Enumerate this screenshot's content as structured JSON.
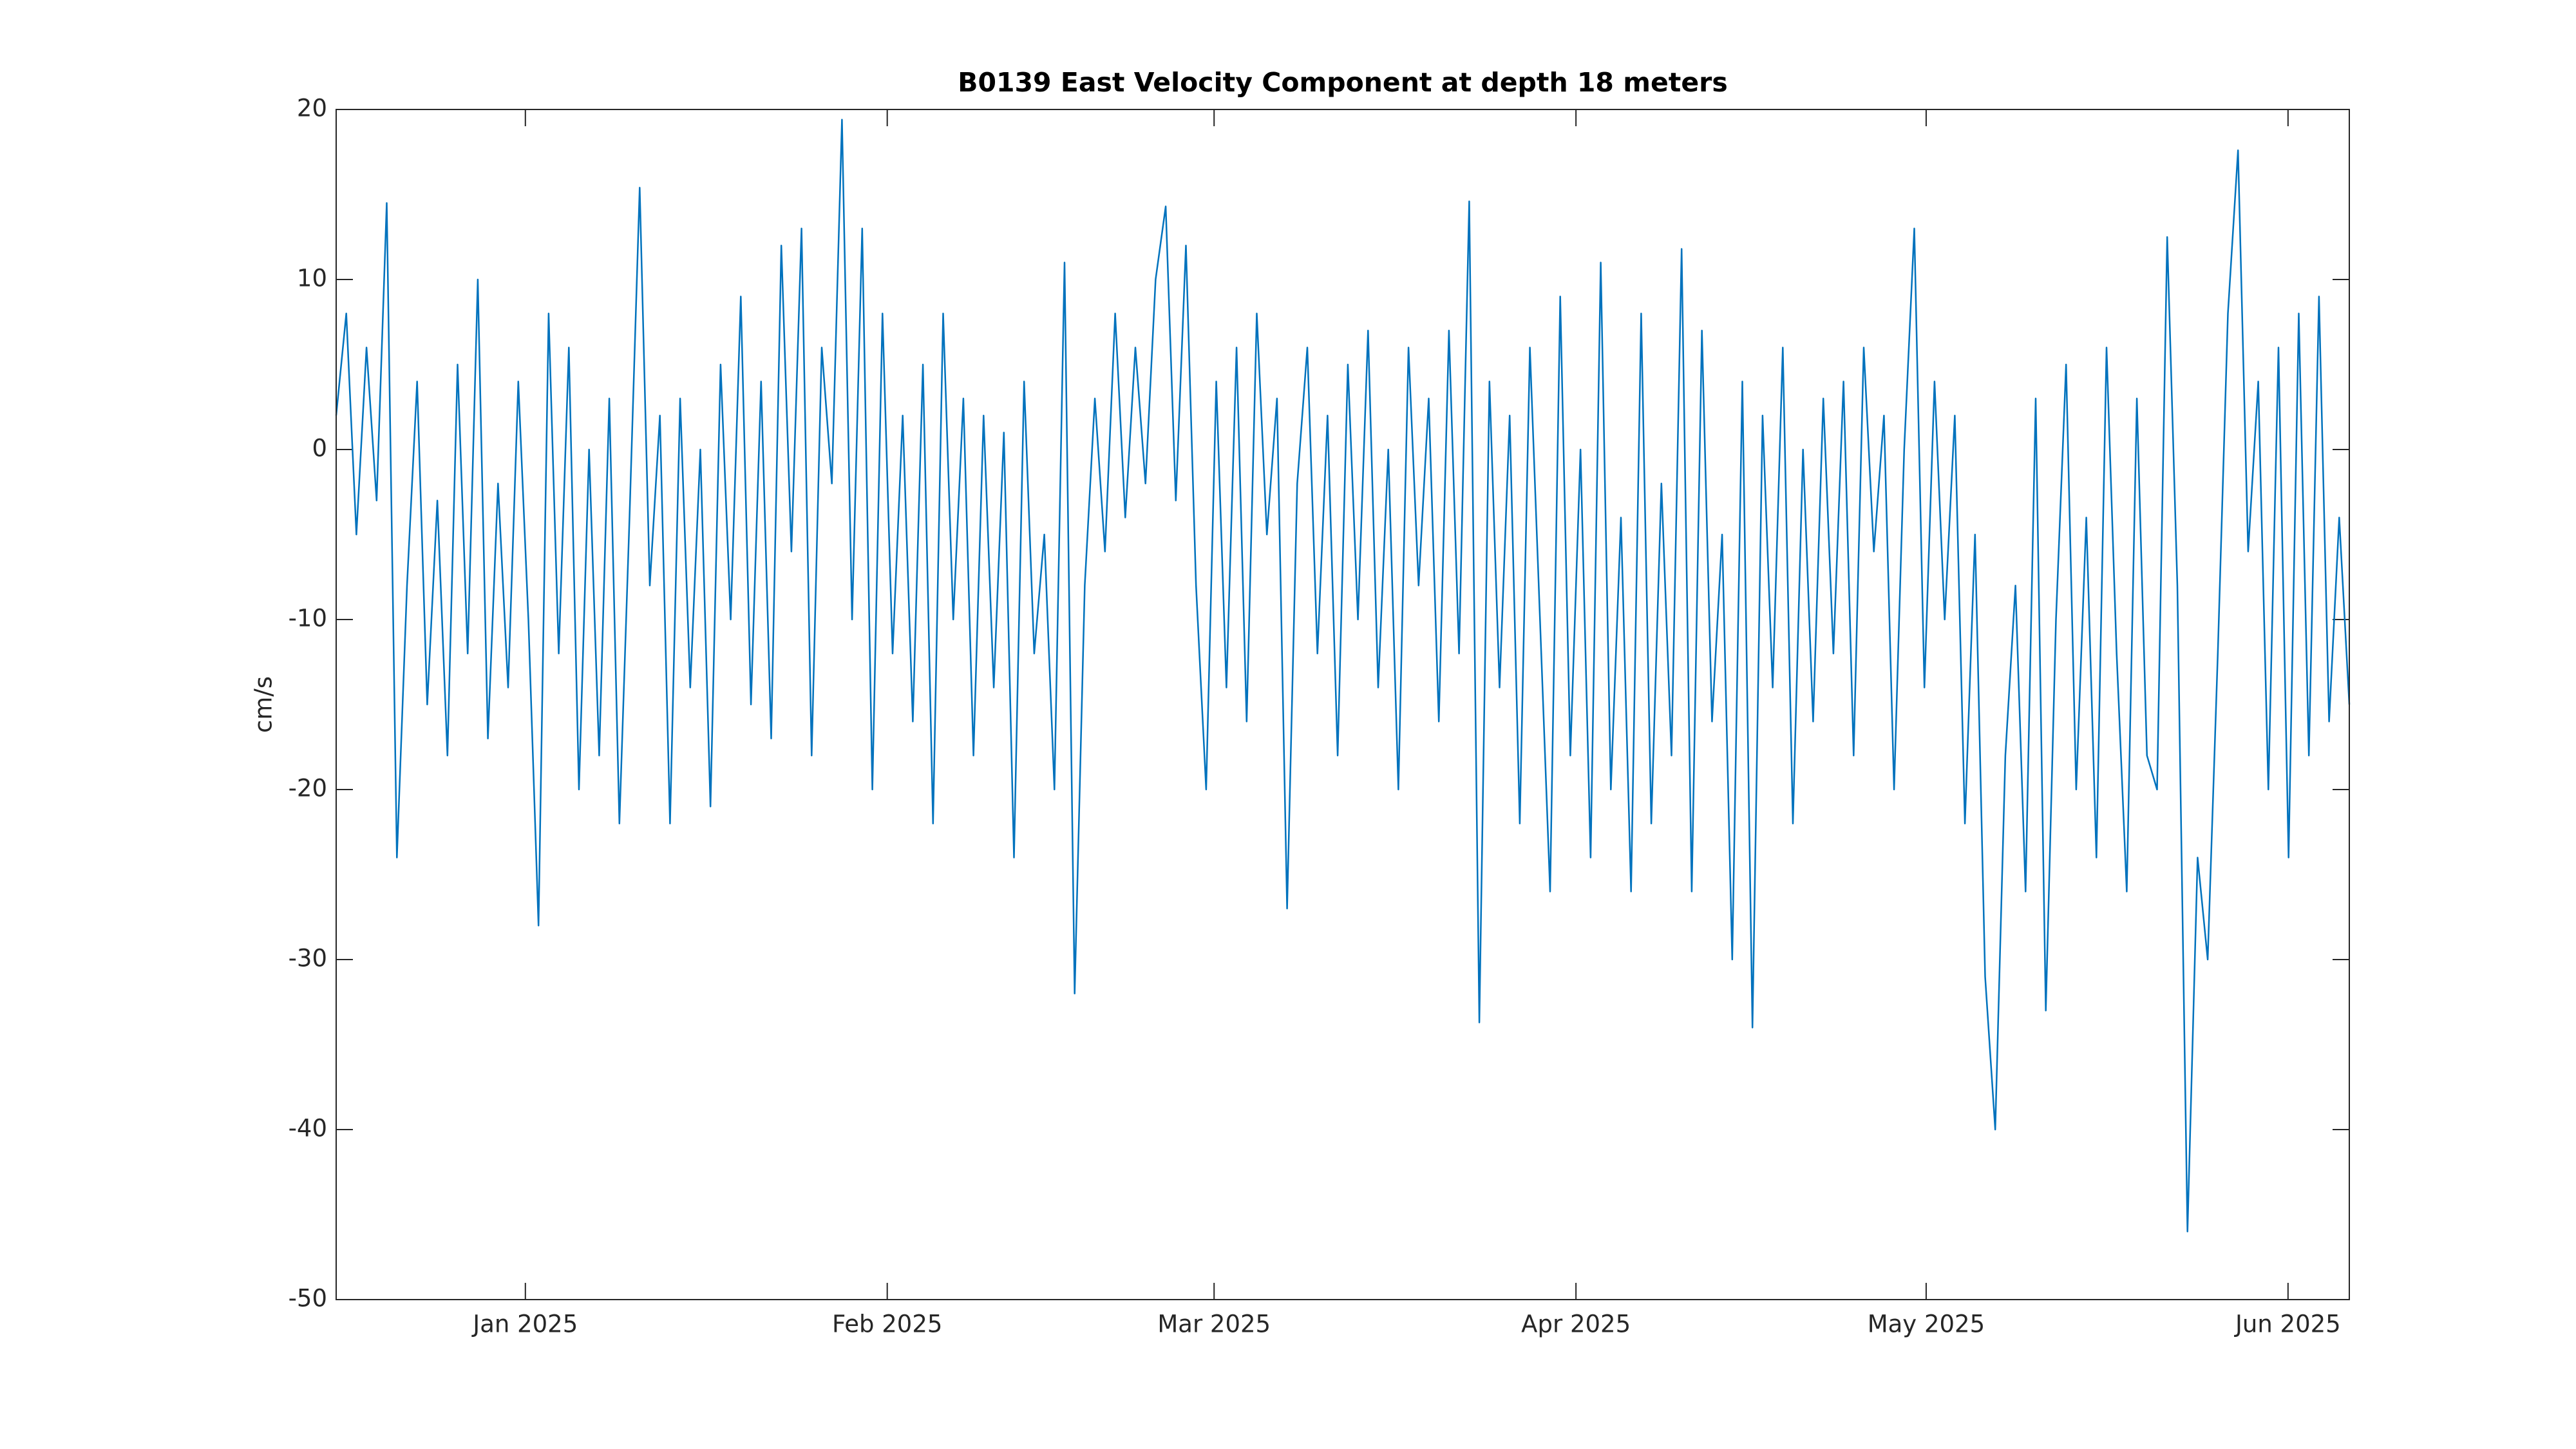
{
  "chart_data": {
    "type": "line",
    "title": "B0139 East Velocity Component at depth 18 meters",
    "ylabel": "cm/s",
    "color": "#0072bd",
    "xlim": [
      "2024-12-15T19:00",
      "2025-06-06T06:00"
    ],
    "xticks": [
      {
        "value": "2025-01-01T00:00",
        "label": "Jan 2025"
      },
      {
        "value": "2025-02-01T00:00",
        "label": "Feb 2025"
      },
      {
        "value": "2025-03-01T00:00",
        "label": "Mar 2025"
      },
      {
        "value": "2025-04-01T00:00",
        "label": "Apr 2025"
      },
      {
        "value": "2025-05-01T00:00",
        "label": "May 2025"
      },
      {
        "value": "2025-06-01T00:00",
        "label": "Jun 2025"
      }
    ],
    "ylim": [
      -50,
      20
    ],
    "yticks": [
      -50,
      -40,
      -30,
      -20,
      -10,
      0,
      10,
      20
    ],
    "grid": false,
    "values": [
      2,
      8,
      -5,
      6,
      -3,
      14.5,
      -24,
      -8,
      4,
      -15,
      -3,
      -18,
      5,
      -12,
      10,
      -17,
      -2,
      -14,
      4,
      -10,
      -28,
      8,
      -12,
      6,
      -20,
      0,
      -18,
      3,
      -22,
      -4,
      15.4,
      -8,
      2,
      -22,
      3,
      -14,
      0,
      -21,
      5,
      -10,
      9,
      -15,
      4,
      -17,
      12,
      -6,
      13,
      -18,
      6,
      -2,
      19.4,
      -10,
      13,
      -20,
      8,
      -12,
      2,
      -16,
      5,
      -22,
      8,
      -10,
      3,
      -18,
      2,
      -14,
      1,
      -24,
      4,
      -12,
      -5,
      -20,
      11,
      -32,
      -8,
      3,
      -6,
      8,
      -4,
      6,
      -2,
      10,
      14.3,
      -3,
      12,
      -8,
      -20,
      4,
      -14,
      6,
      -16,
      8,
      -5,
      3,
      -27,
      -2,
      6,
      -12,
      2,
      -18,
      5,
      -10,
      7,
      -14,
      0,
      -20,
      6,
      -8,
      3,
      -16,
      7,
      -12,
      14.6,
      -33.7,
      4,
      -14,
      2,
      -22,
      6,
      -10,
      -26,
      9,
      -18,
      0,
      -24,
      11,
      -20,
      -4,
      -26,
      8,
      -22,
      -2,
      -18,
      11.8,
      -26,
      7,
      -16,
      -5,
      -30,
      4,
      -34,
      2,
      -14,
      6,
      -22,
      0,
      -16,
      3,
      -12,
      4,
      -18,
      6,
      -6,
      2,
      -20,
      0,
      13,
      -14,
      4,
      -10,
      2,
      -22,
      -5,
      -31,
      -40,
      -18,
      -8,
      -26,
      3,
      -33,
      -10,
      5,
      -20,
      -4,
      -24,
      6,
      -12,
      -26,
      3,
      -18,
      -20,
      12.5,
      -8,
      -46,
      -24,
      -30,
      -12,
      8,
      17.6,
      -6,
      4,
      -20,
      6,
      -24,
      8,
      -18,
      9,
      -16,
      -4,
      -15
    ]
  }
}
